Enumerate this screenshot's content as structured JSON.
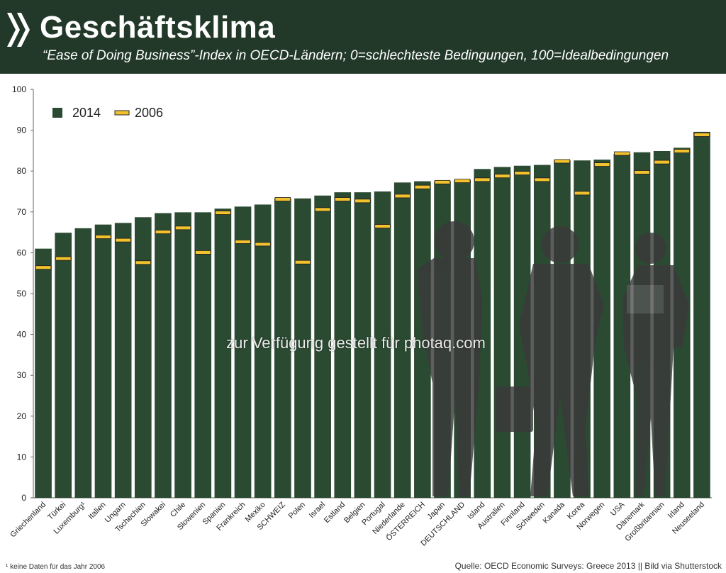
{
  "header": {
    "title": "Geschäftsklima",
    "subtitle": "“Ease of Doing Business”-Index in OECD-Ländern; 0=schlechteste Bedingungen, 100=Idealbedingungen"
  },
  "colors": {
    "header_bg": "#22392a",
    "bar": "#2b4a32",
    "marker_2006": "#f2c12e",
    "silhouette": "#3a3a3a"
  },
  "watermark": "zur Verfügung gestellt für photaq.com",
  "footnote": "¹ keine Daten für das Jahr 2006",
  "source": "Quelle: OECD Economic Surveys: Greece 2013 || Bild via Shutterstock",
  "chart_data": {
    "type": "bar",
    "categories": [
      "Griechenland",
      "Türkei",
      "Luxemburg¹",
      "Italien",
      "Ungarn",
      "Tschechien",
      "Slowakei",
      "Chile",
      "Slowenien",
      "Spanien",
      "Frankreich",
      "Mexiko",
      "SCHWEIZ",
      "Polen",
      "Israel",
      "Estland",
      "Belgien",
      "Portugal",
      "Niederlande",
      "ÖSTERREICH",
      "Japan",
      "DEUTSCHLAND",
      "Island",
      "Australien",
      "Finnland",
      "Schweden",
      "Kanada",
      "Korea",
      "Norwegen",
      "USA",
      "Dänemark",
      "Großbritannien",
      "Irland",
      "Neuseeland"
    ],
    "series": [
      {
        "name": "2014",
        "type": "bar",
        "values": [
          61.0,
          64.9,
          66.0,
          66.9,
          67.3,
          68.7,
          69.7,
          69.9,
          69.9,
          70.8,
          71.3,
          71.8,
          73.3,
          73.3,
          74.0,
          74.8,
          74.8,
          75.0,
          77.2,
          77.5,
          77.5,
          77.8,
          80.5,
          81.0,
          81.3,
          81.5,
          82.6,
          82.6,
          82.8,
          84.2,
          84.6,
          84.9,
          85.7,
          89.6
        ]
      },
      {
        "name": "2006",
        "type": "marker",
        "values": [
          56.3,
          58.5,
          null,
          63.8,
          63.0,
          57.5,
          65.0,
          66.0,
          60.0,
          69.7,
          62.6,
          62.0,
          73.0,
          57.6,
          70.5,
          73.0,
          72.6,
          66.4,
          73.8,
          76.0,
          77.2,
          77.5,
          77.8,
          78.7,
          79.4,
          77.8,
          82.3,
          74.5,
          81.5,
          84.2,
          79.6,
          82.1,
          84.8,
          88.8
        ]
      }
    ],
    "ylim": [
      0,
      100
    ],
    "yticks": [
      0,
      10,
      20,
      30,
      40,
      50,
      60,
      70,
      80,
      90,
      100
    ],
    "legend_position": "top-left",
    "grid": false
  }
}
